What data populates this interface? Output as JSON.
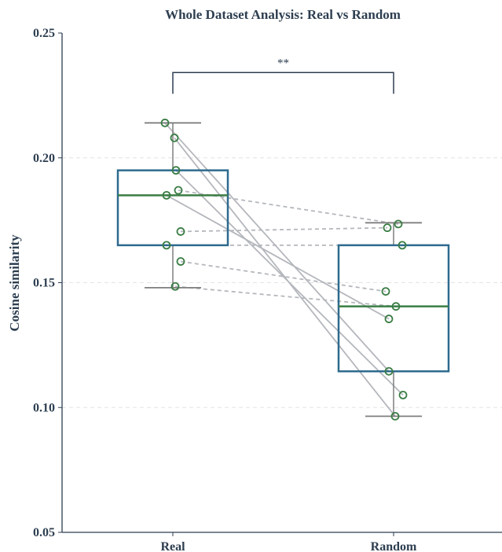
{
  "chart_data": {
    "type": "box",
    "title": "Whole Dataset Analysis: Real vs Random",
    "xlabel": "",
    "ylabel": "Cosine similarity",
    "categories": [
      "Real",
      "Random"
    ],
    "ylim": [
      0.05,
      0.25
    ],
    "yticks": [
      0.05,
      0.1,
      0.15,
      0.2,
      0.25
    ],
    "ytick_labels": [
      "0.05",
      "0.10",
      "0.15",
      "0.20",
      "0.25"
    ],
    "grid": true,
    "significance": {
      "between": [
        "Real",
        "Random"
      ],
      "label": "**"
    },
    "boxes": [
      {
        "category": "Real",
        "whisker_low": 0.148,
        "q1": 0.165,
        "median": 0.185,
        "q3": 0.195,
        "whisker_high": 0.214
      },
      {
        "category": "Random",
        "whisker_low": 0.0965,
        "q1": 0.1145,
        "median": 0.1405,
        "q3": 0.165,
        "whisker_high": 0.174
      }
    ],
    "pairs": [
      {
        "real": 0.214,
        "random": 0.1145
      },
      {
        "real": 0.208,
        "random": 0.0965
      },
      {
        "real": 0.195,
        "random": 0.105
      },
      {
        "real": 0.187,
        "random": 0.1735
      },
      {
        "real": 0.185,
        "random": 0.1355
      },
      {
        "real": 0.1705,
        "random": 0.172
      },
      {
        "real": 0.165,
        "random": 0.165
      },
      {
        "real": 0.1585,
        "random": 0.1465
      },
      {
        "real": 0.1485,
        "random": 0.1405
      }
    ],
    "colors": {
      "box": "#2e6a8e",
      "median": "#3a7d44",
      "point": "#3a7d44",
      "whisker": "#7f7f7f",
      "pair_line": "#b4b7bc",
      "grid": "#e3e3e3",
      "axis": "#2d3e50"
    }
  }
}
